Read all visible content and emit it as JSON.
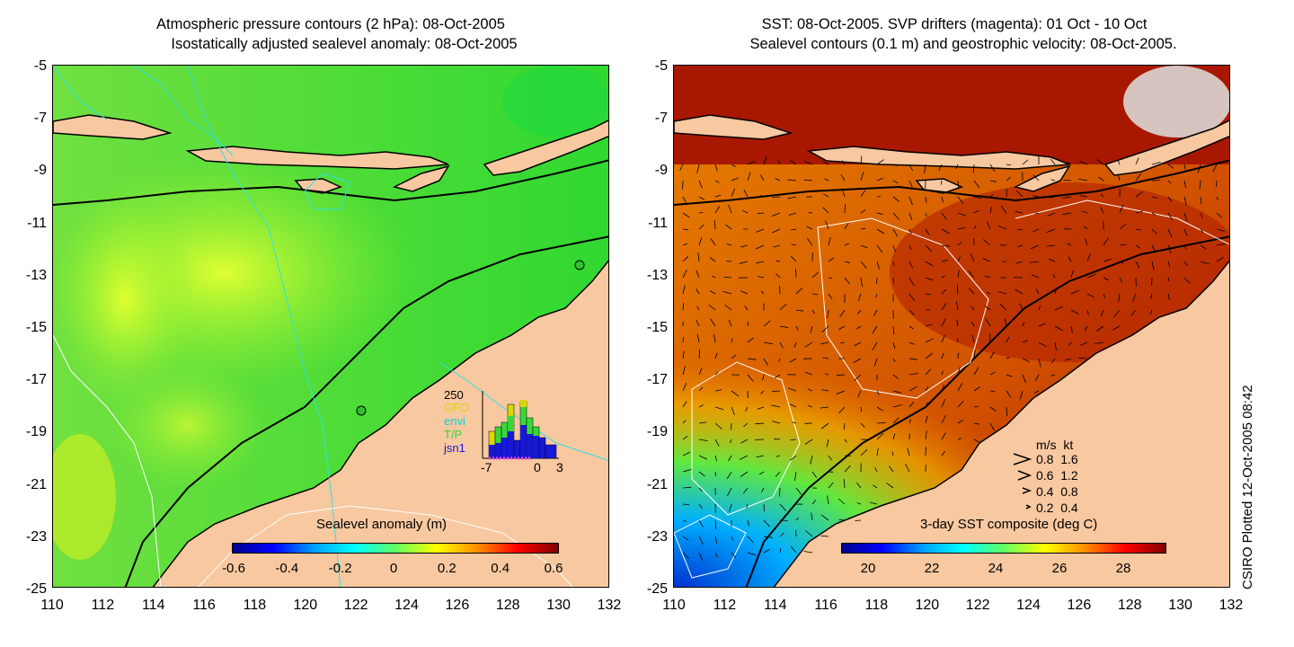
{
  "left_panel": {
    "title_line1": "Atmospheric pressure contours (2 hPa): 08-Oct-2005",
    "title_line2": "Isostatically adjusted sealevel anomaly: 08-Oct-2005",
    "y_ticks": [
      "-5",
      "-7",
      "-9",
      "-11",
      "-13",
      "-15",
      "-17",
      "-19",
      "-21",
      "-23",
      "-25"
    ],
    "x_ticks": [
      "110",
      "112",
      "114",
      "116",
      "118",
      "120",
      "122",
      "124",
      "126",
      "128",
      "130",
      "132"
    ],
    "colorbar_title": "Sealevel anomaly (m)",
    "colorbar_ticks": [
      "-0.6",
      "-0.4",
      "-0.2",
      "0",
      "0.2",
      "0.4",
      "0.6"
    ],
    "inset": {
      "max_label": "250",
      "legend": [
        "GFO",
        "envi",
        "T/P",
        "jsn1"
      ],
      "legend_colors": [
        "#d8d800",
        "#00d8d8",
        "#38d838",
        "#1818d8"
      ],
      "x_ticks": [
        "-7",
        "0",
        "3"
      ]
    }
  },
  "right_panel": {
    "title_line1": "SST: 08-Oct-2005. SVP drifters (magenta): 01 Oct - 10 Oct",
    "title_line2": "Sealevel contours (0.1 m) and geostrophic velocity: 08-Oct-2005.",
    "y_ticks": [
      "-5",
      "-7",
      "-9",
      "-11",
      "-13",
      "-15",
      "-17",
      "-19",
      "-21",
      "-23",
      "-25"
    ],
    "x_ticks": [
      "110",
      "112",
      "114",
      "116",
      "118",
      "120",
      "122",
      "124",
      "126",
      "128",
      "130",
      "132"
    ],
    "colorbar_title": "3-day SST composite (deg C)",
    "colorbar_ticks": [
      "20",
      "22",
      "24",
      "26",
      "28"
    ],
    "velocity_legend": {
      "header": "m/s  kt",
      "rows": [
        "0.8  1.6",
        "0.6  1.2",
        "0.4  0.8",
        "0.2  0.4"
      ]
    }
  },
  "side_label": "CSIRO Plotted 12-Oct-2005 08:42",
  "colors": {
    "land": "#f8c8a0",
    "sla_colormap": [
      "#00008f",
      "#0000ff",
      "#00a0ff",
      "#00ffff",
      "#60ff60",
      "#ffff00",
      "#ff9000",
      "#ff0000",
      "#800000"
    ],
    "sst_colormap": [
      "#00008f",
      "#0000ff",
      "#00a0ff",
      "#00ffff",
      "#60ff60",
      "#ffff00",
      "#ff9000",
      "#ff0000",
      "#800000"
    ]
  }
}
